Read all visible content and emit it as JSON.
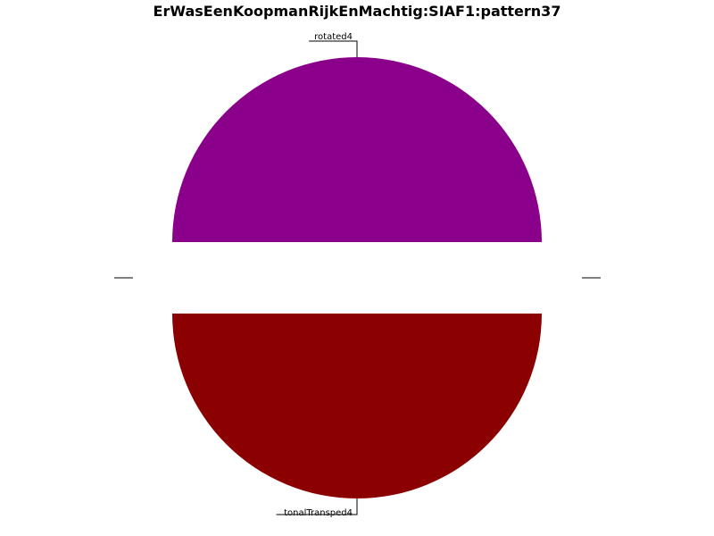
{
  "chart_data": {
    "type": "pie",
    "title": "ErWasEenKoopmanRijkEnMachtig:SIAF1:pattern37",
    "categories": [
      "rotated4",
      "tonalTransped4"
    ],
    "values": [
      50,
      50
    ],
    "colors": [
      "#8b008b",
      "#8b0000"
    ],
    "exploded": true,
    "legend": "none"
  }
}
